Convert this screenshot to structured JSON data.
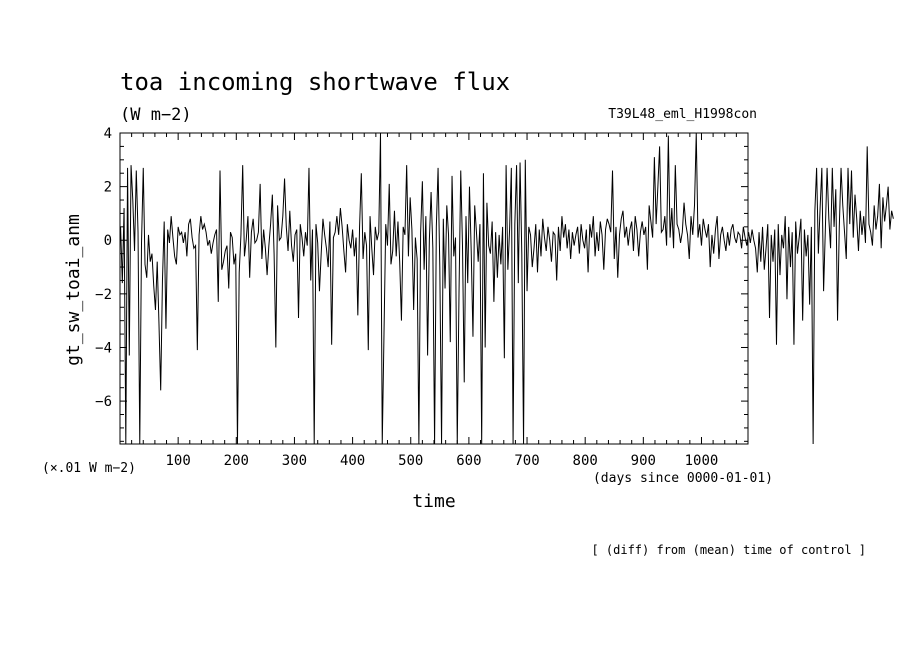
{
  "chart_data": {
    "type": "line",
    "title": "toa incoming shortwave flux",
    "units": "(W m−2)",
    "experiment": "T39L48_eml_H1998con",
    "ylabel": "gt_sw_toai_anm",
    "yscale_note": "(×.01 W m−2)",
    "xlabel": "time",
    "xunits": "(days since 0000-01-01)",
    "footnote": "[ (diff) from (mean) time of control ]",
    "xlim": [
      0,
      1080
    ],
    "ylim": [
      -7.6,
      4
    ],
    "x_ticks": [
      100,
      200,
      300,
      400,
      500,
      600,
      700,
      800,
      900,
      1000
    ],
    "y_ticks": [
      4,
      2,
      0,
      -2,
      -4,
      -6
    ],
    "x_start": 1,
    "x_step": 3,
    "values": [
      0.5,
      -1.6,
      1.2,
      -7.6,
      2.7,
      -4.3,
      2.8,
      1.5,
      -0.4,
      2.6,
      0.3,
      -7.6,
      -0.1,
      2.7,
      -0.9,
      -1.4,
      0.2,
      -0.8,
      -0.5,
      -1.7,
      -2.6,
      -0.8,
      -3.1,
      -5.6,
      -1.5,
      0.7,
      -3.3,
      0.4,
      -0.1,
      0.9,
      0.1,
      -0.6,
      -0.9,
      0.5,
      0.2,
      0.3,
      -0.1,
      0.3,
      -0.6,
      0.6,
      0.8,
      0.1,
      -0.3,
      -0.2,
      -4.1,
      0.2,
      0.9,
      0.4,
      0.6,
      0.3,
      -0.2,
      0.0,
      -0.5,
      -0.1,
      0.2,
      0.4,
      -2.3,
      2.6,
      -1.1,
      -0.8,
      -0.4,
      -0.2,
      -1.8,
      0.3,
      0.1,
      -0.9,
      -0.5,
      -7.6,
      -1.2,
      0.2,
      2.8,
      -0.6,
      0.0,
      0.9,
      -1.4,
      0.3,
      0.8,
      -0.1,
      0.0,
      0.3,
      2.1,
      -0.7,
      0.4,
      -0.3,
      -1.3,
      -0.2,
      0.6,
      1.7,
      -0.5,
      -4.0,
      1.3,
      0.0,
      0.1,
      0.9,
      2.3,
      0.5,
      -0.4,
      1.1,
      -0.2,
      -0.8,
      0.2,
      0.4,
      -2.9,
      0.6,
      0.1,
      -0.6,
      0.3,
      -0.2,
      2.7,
      -1.5,
      0.4,
      -7.6,
      0.6,
      -0.1,
      -1.9,
      -0.5,
      0.8,
      0.2,
      -0.3,
      -1.0,
      0.7,
      -3.9,
      0.1,
      0.3,
      0.9,
      0.2,
      1.2,
      0.5,
      -0.4,
      -1.2,
      0.6,
      0.0,
      -0.3,
      0.4,
      -0.6,
      0.1,
      -2.8,
      0.5,
      2.5,
      -0.7,
      0.3,
      -0.2,
      -4.1,
      0.9,
      -0.3,
      -1.3,
      0.5,
      0.0,
      0.3,
      4.0,
      -7.6,
      -3.5,
      0.6,
      -0.2,
      2.1,
      -0.9,
      -0.4,
      1.1,
      -0.6,
      0.7,
      -0.8,
      -3.0,
      0.5,
      0.2,
      2.8,
      -0.6,
      1.6,
      0.4,
      -2.6,
      0.1,
      -0.7,
      -7.6,
      0.3,
      2.2,
      -1.1,
      0.9,
      -4.3,
      0.0,
      1.8,
      -0.3,
      -7.6,
      0.5,
      2.7,
      -1.0,
      -7.6,
      0.8,
      -1.8,
      1.3,
      0.2,
      -3.8,
      2.4,
      -0.6,
      0.1,
      -7.6,
      -2.0,
      2.6,
      -0.2,
      -5.3,
      0.9,
      -1.6,
      2.0,
      -0.4,
      -3.6,
      1.3,
      0.3,
      -0.8,
      0.6,
      -7.6,
      2.5,
      -4.0,
      1.4,
      -0.2,
      -0.5,
      0.7,
      -2.3,
      0.3,
      -1.4,
      0.2,
      -0.9,
      0.5,
      -4.4,
      2.8,
      -1.1,
      0.4,
      2.7,
      -7.6,
      0.6,
      2.8,
      -1.6,
      2.9,
      -0.5,
      -7.6,
      3.0,
      -1.9,
      0.5,
      0.2,
      -1.0,
      -0.3,
      0.6,
      -1.2,
      0.4,
      -0.6,
      0.8,
      0.1,
      -0.4,
      0.5,
      0.0,
      -0.8,
      0.3,
      0.2,
      -1.5,
      0.5,
      -0.4,
      0.9,
      0.1,
      0.6,
      -0.3,
      0.4,
      -0.7,
      0.3,
      -0.2,
      0.2,
      0.5,
      -0.5,
      0.6,
      0.0,
      -0.3,
      0.4,
      -1.2,
      0.6,
      0.1,
      0.9,
      -0.6,
      0.3,
      -0.4,
      0.7,
      0.2,
      -1.1,
      0.4,
      0.8,
      0.6,
      0.3,
      2.6,
      -0.7,
      0.5,
      -1.4,
      0.2,
      0.8,
      1.1,
      0.1,
      0.5,
      -0.2,
      0.4,
      0.7,
      -0.4,
      0.9,
      0.4,
      -0.6,
      0.3,
      0.7,
      0.2,
      0.5,
      -1.1,
      1.3,
      0.7,
      0.1,
      3.1,
      0.6,
      2.0,
      3.5,
      0.3,
      0.4,
      0.9,
      -0.2,
      3.9,
      0.1,
      1.2,
      -0.3,
      2.8,
      0.6,
      0.4,
      -0.1,
      0.3,
      1.4,
      0.6,
      0.2,
      -0.7,
      0.9,
      0.2,
      1.3,
      4.0,
      0.1,
      0.6,
      -0.2,
      0.8,
      0.4,
      0.1,
      0.6,
      -1.0,
      0.2,
      -0.5,
      0.4,
      0.9,
      -0.7,
      0.2,
      0.5,
      0.0,
      -0.4,
      0.3,
      -0.2,
      0.4,
      0.6,
      0.1,
      -0.1,
      0.3,
      0.2,
      -0.3,
      0.5,
      0.1,
      -0.2,
      0.3,
      -0.1,
      0.4,
      0.0,
      -0.3,
      -1.2,
      0.3,
      -0.8,
      0.5,
      -1.1,
      -0.3,
      0.6,
      -2.9,
      0.2,
      -0.8,
      0.4,
      -3.9,
      0.6,
      -1.3,
      0.2,
      -0.3,
      0.9,
      -2.2,
      0.5,
      -1.0,
      0.3,
      -3.9,
      0.7,
      -0.5,
      0.1,
      0.8,
      -3.0,
      0.4,
      -0.6,
      0.2,
      -2.4,
      0.5,
      -7.6,
      1.1,
      2.7,
      -0.5,
      1.2,
      2.7,
      -1.9,
      0.4,
      2.7,
      0.8,
      -0.3,
      2.7,
      0.5,
      1.9,
      -3.0,
      0.5,
      2.7,
      1.3,
      0.3,
      -0.7,
      2.7,
      0.6,
      2.6,
      0.1,
      1.7,
      0.8,
      -0.4,
      1.1,
      0.2,
      0.9,
      -0.1,
      3.5,
      0.6,
      0.3,
      -0.2,
      1.3,
      0.4,
      0.9,
      2.1,
      -0.3,
      1.6,
      0.7,
      1.3,
      2.0,
      0.4,
      1.1,
      0.8
    ]
  }
}
